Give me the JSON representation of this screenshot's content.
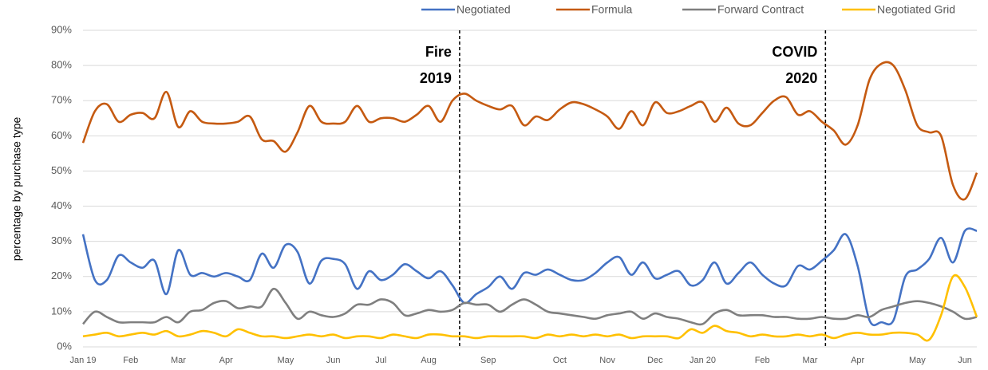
{
  "chart_data": {
    "type": "line",
    "y_label": "percentage by purchase type",
    "categories": [
      "Jan 19",
      null,
      null,
      null,
      "Feb",
      null,
      null,
      null,
      "Mar",
      null,
      null,
      null,
      "Apr",
      null,
      null,
      null,
      null,
      "May",
      null,
      null,
      null,
      "Jun",
      null,
      null,
      null,
      "Jul",
      null,
      null,
      null,
      "Aug",
      null,
      null,
      null,
      null,
      "Sep",
      null,
      null,
      null,
      null,
      null,
      "Oct",
      null,
      null,
      null,
      "Nov",
      null,
      null,
      null,
      "Dec",
      null,
      null,
      null,
      "Jan 20",
      null,
      null,
      null,
      null,
      "Feb",
      null,
      null,
      null,
      "Mar",
      null,
      null,
      null,
      "Apr",
      null,
      null,
      null,
      null,
      "May",
      null,
      null,
      null,
      "Jun",
      null
    ],
    "series": [
      {
        "name": "Negotiated",
        "color": "#4472c4",
        "values": [
          32,
          19,
          19,
          26,
          24,
          22.5,
          24.5,
          15,
          27.5,
          20.5,
          21,
          20,
          21,
          20,
          19,
          26.5,
          22.5,
          29,
          27,
          18,
          24.5,
          25,
          23.5,
          16.5,
          21.5,
          19,
          20.5,
          23.5,
          21.5,
          19.5,
          21.5,
          17.5,
          12.5,
          15,
          17,
          20,
          16.5,
          21,
          20.5,
          22,
          20.5,
          19,
          19,
          21,
          24,
          25.5,
          20.5,
          24,
          19.5,
          20.5,
          21.5,
          17.5,
          19,
          24,
          18,
          21,
          24,
          20.5,
          18,
          17.5,
          23,
          22,
          24.5,
          27.5,
          32,
          23,
          7.5,
          7,
          7.5,
          20,
          22,
          25,
          31,
          24,
          33,
          33
        ]
      },
      {
        "name": "Formula",
        "color": "#c55a11",
        "values": [
          58,
          67,
          69,
          64,
          66,
          66.5,
          65,
          72.5,
          62.5,
          67,
          64,
          63.5,
          63.5,
          64,
          65.5,
          59,
          58.5,
          55.5,
          61,
          68.5,
          64,
          63.5,
          64,
          68.5,
          64,
          65,
          65,
          64,
          66,
          68.5,
          64,
          70,
          72,
          70,
          68.5,
          67.5,
          68.5,
          63,
          65.5,
          64.5,
          67.5,
          69.5,
          69,
          67.5,
          65.5,
          62,
          67,
          63,
          69.5,
          66.5,
          67,
          68.5,
          69.5,
          64,
          68,
          63.5,
          63,
          66.5,
          70,
          71,
          66,
          67,
          64,
          61.5,
          57.5,
          63,
          76,
          80.5,
          80,
          73,
          63,
          61,
          60,
          46,
          42,
          49.5
        ]
      },
      {
        "name": "Forward Contract",
        "color": "#7f7f7f",
        "values": [
          6.5,
          10,
          8.5,
          7,
          7,
          7,
          7,
          8.5,
          7,
          10,
          10.5,
          12.5,
          13,
          11,
          11.5,
          11.5,
          16.5,
          12.5,
          8,
          10,
          9,
          8.5,
          9.5,
          12,
          12,
          13.5,
          12.5,
          9,
          9.5,
          10.5,
          10,
          10.5,
          12.5,
          12,
          12,
          10,
          12,
          13.5,
          12,
          10,
          9.5,
          9,
          8.5,
          8,
          9,
          9.5,
          10,
          8,
          9.5,
          8.5,
          8,
          7,
          6.5,
          9.5,
          10.5,
          9,
          9,
          9,
          8.5,
          8.5,
          8,
          8,
          8.5,
          8,
          8,
          9,
          8.5,
          10.5,
          11.5,
          12.5,
          13,
          12.5,
          11.5,
          10,
          8,
          8.5
        ]
      },
      {
        "name": "Negotiated Grid",
        "color": "#ffc000",
        "values": [
          3,
          3.5,
          4,
          3,
          3.5,
          4,
          3.5,
          4.5,
          3,
          3.5,
          4.5,
          4,
          3,
          5,
          4,
          3,
          3,
          2.5,
          3,
          3.5,
          3,
          3.5,
          2.5,
          3,
          3,
          2.5,
          3.5,
          3,
          2.5,
          3.5,
          3.5,
          3,
          3,
          2.5,
          3,
          3,
          3,
          3,
          2.5,
          3.5,
          3,
          3.5,
          3,
          3.5,
          3,
          3.5,
          2.5,
          3,
          3,
          3,
          2.5,
          5,
          4,
          6,
          4.5,
          4,
          3,
          3.5,
          3,
          3,
          3.5,
          3,
          3.5,
          2.5,
          3.5,
          4,
          3.5,
          3.5,
          4,
          4,
          3.5,
          2,
          9,
          20,
          17,
          8.5
        ]
      }
    ],
    "ylim": [
      0,
      90
    ],
    "yticks": [
      {
        "value": 0,
        "label": "0%"
      },
      {
        "value": 10,
        "label": "10%"
      },
      {
        "value": 20,
        "label": "20%"
      },
      {
        "value": 30,
        "label": "30%"
      },
      {
        "value": 40,
        "label": "40%"
      },
      {
        "value": 50,
        "label": "50%"
      },
      {
        "value": 60,
        "label": "60%"
      },
      {
        "value": 70,
        "label": "70%"
      },
      {
        "value": 80,
        "label": "80%"
      },
      {
        "value": 90,
        "label": "90%"
      }
    ],
    "grid": true,
    "legend": "top-right",
    "annotations": [
      {
        "lines": [
          "Fire",
          "2019"
        ]
      },
      {
        "lines": [
          "COVID",
          "2020"
        ]
      }
    ]
  }
}
